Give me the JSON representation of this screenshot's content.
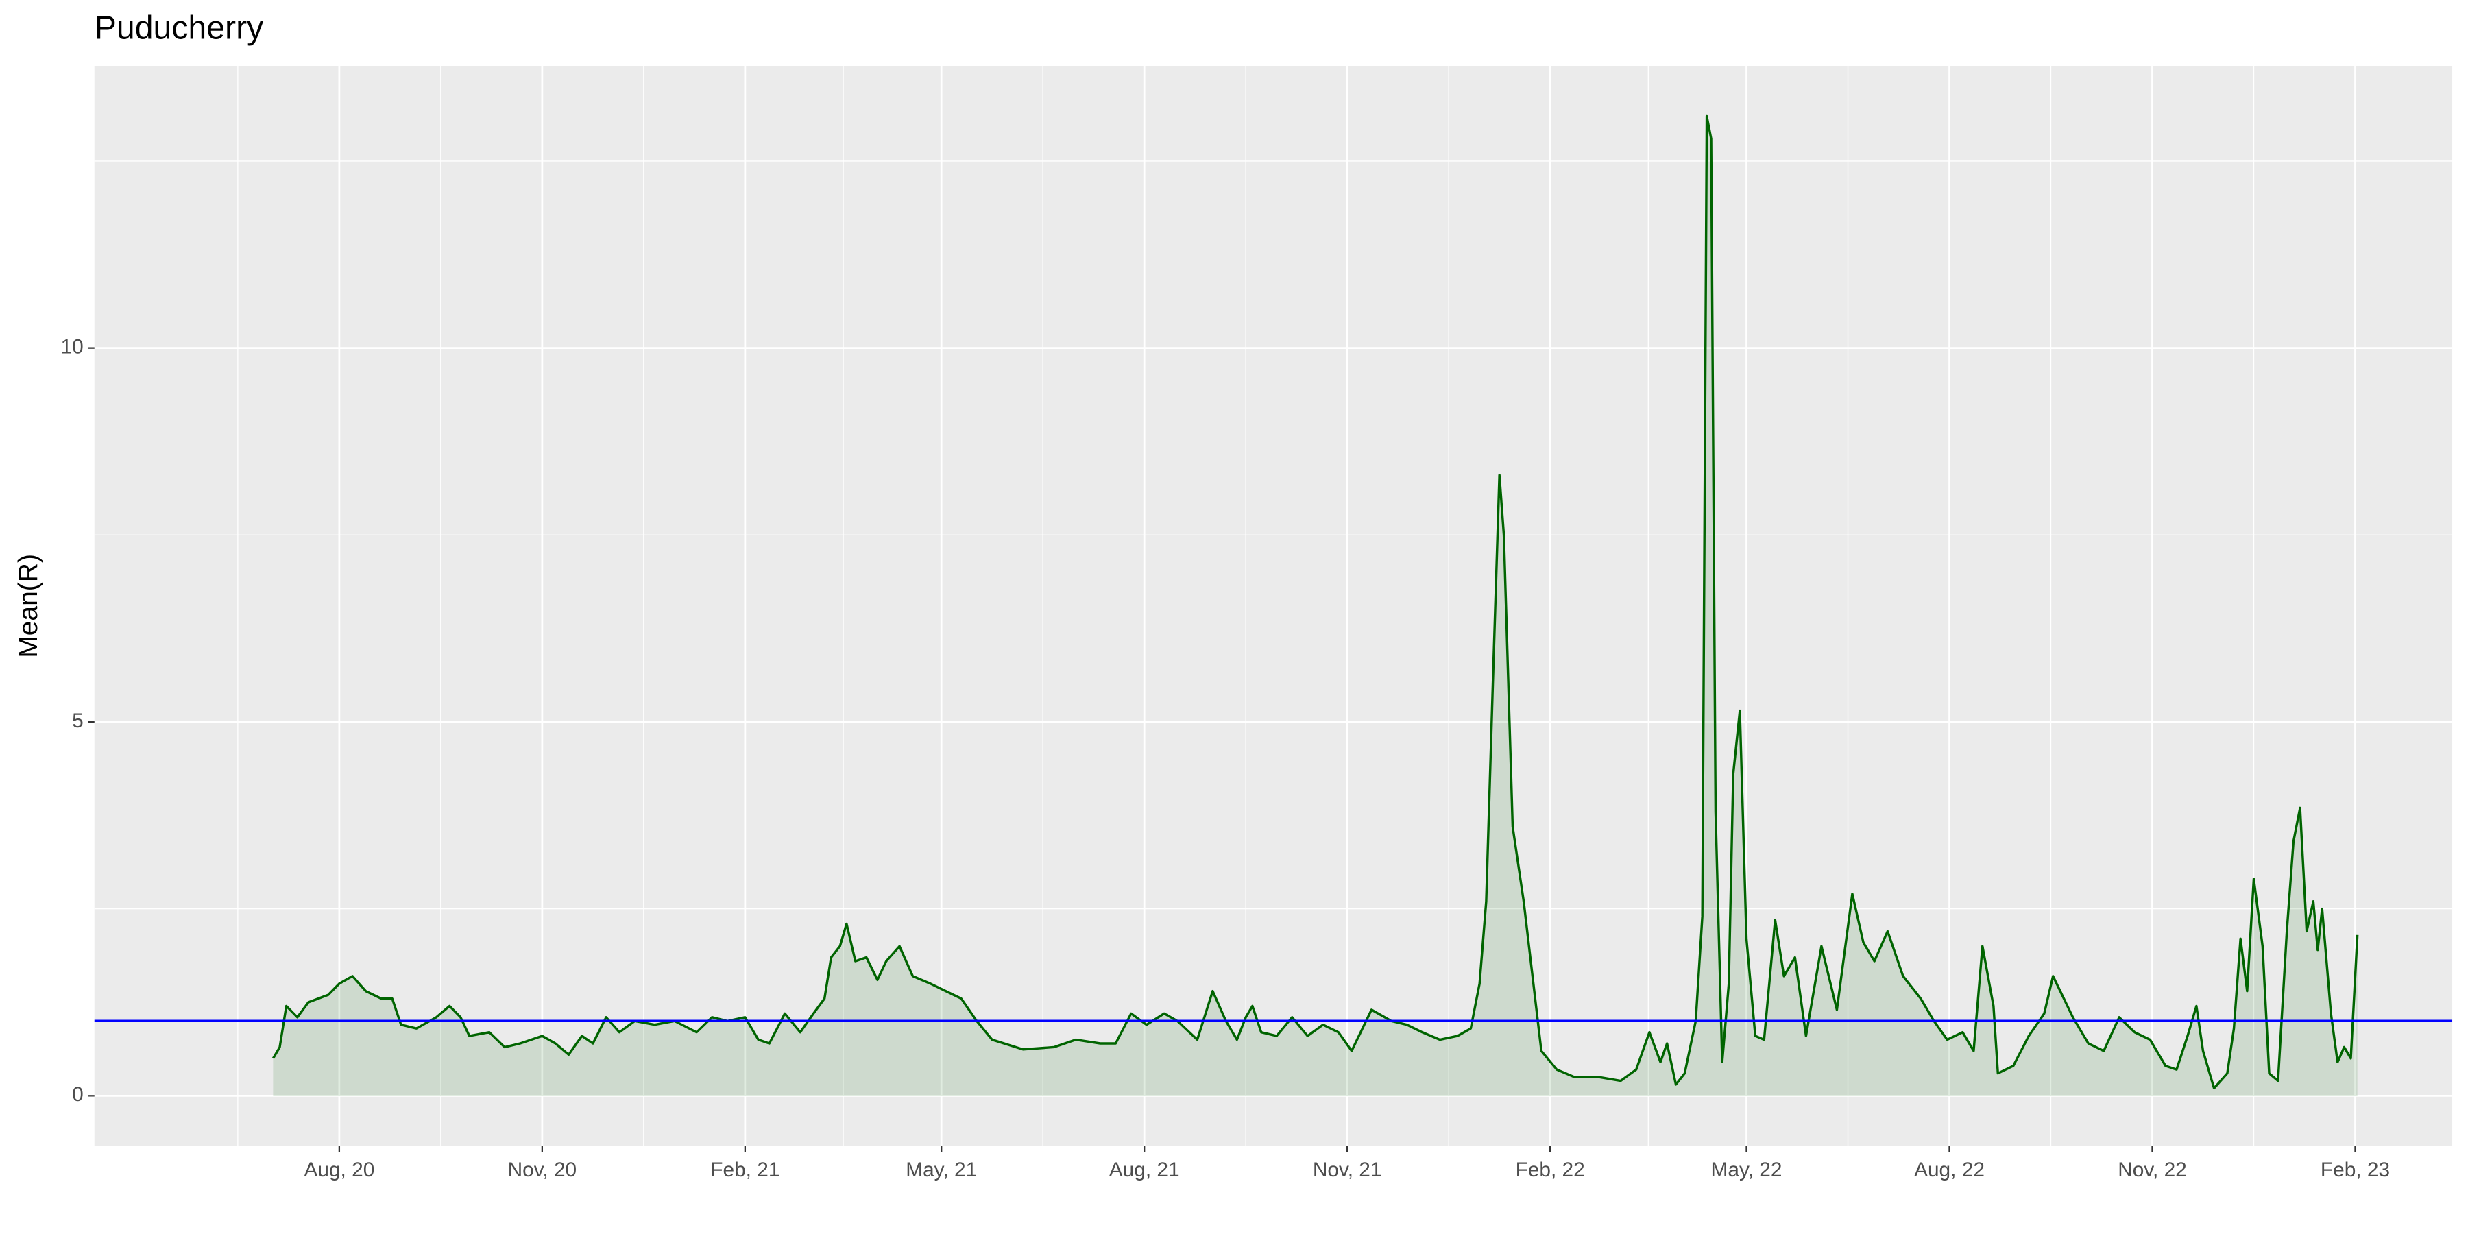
{
  "chart_data": {
    "type": "line",
    "title": "Puducherry",
    "y_label": "Mean(R)",
    "series": [
      {
        "name": "Mean(R)",
        "color": "#006400",
        "fill": "#006400",
        "x": [
          "2020-07-02",
          "2020-07-05",
          "2020-07-08",
          "2020-07-13",
          "2020-07-18",
          "2020-07-27",
          "2020-08-01",
          "2020-08-07",
          "2020-08-13",
          "2020-08-20",
          "2020-08-25",
          "2020-08-29",
          "2020-09-05",
          "2020-09-14",
          "2020-09-20",
          "2020-09-25",
          "2020-09-29",
          "2020-10-08",
          "2020-10-15",
          "2020-10-22",
          "2020-11-01",
          "2020-11-07",
          "2020-11-13",
          "2020-11-19",
          "2020-11-24",
          "2020-11-30",
          "2020-12-06",
          "2020-12-13",
          "2020-12-22",
          "2020-12-31",
          "2021-01-10",
          "2021-01-17",
          "2021-01-24",
          "2021-02-01",
          "2021-02-07",
          "2021-02-12",
          "2021-02-19",
          "2021-02-26",
          "2021-03-04",
          "2021-03-09",
          "2021-03-12",
          "2021-03-16",
          "2021-03-19",
          "2021-03-23",
          "2021-03-28",
          "2021-04-02",
          "2021-04-06",
          "2021-04-12",
          "2021-04-18",
          "2021-04-26",
          "2021-05-03",
          "2021-05-10",
          "2021-05-17",
          "2021-05-24",
          "2021-06-07",
          "2021-06-21",
          "2021-07-01",
          "2021-07-12",
          "2021-07-19",
          "2021-07-26",
          "2021-08-02",
          "2021-08-10",
          "2021-08-16",
          "2021-08-25",
          "2021-09-01",
          "2021-09-07",
          "2021-09-12",
          "2021-09-16",
          "2021-09-19",
          "2021-09-23",
          "2021-09-30",
          "2021-10-07",
          "2021-10-14",
          "2021-10-21",
          "2021-10-28",
          "2021-11-03",
          "2021-11-12",
          "2021-11-21",
          "2021-11-28",
          "2021-12-05",
          "2021-12-13",
          "2021-12-21",
          "2021-12-27",
          "2021-12-31",
          "2022-01-03",
          "2022-01-06",
          "2022-01-09",
          "2022-01-11",
          "2022-01-15",
          "2022-01-20",
          "2022-01-24",
          "2022-01-28",
          "2022-02-04",
          "2022-02-12",
          "2022-02-23",
          "2022-03-05",
          "2022-03-12",
          "2022-03-18",
          "2022-03-23",
          "2022-03-26",
          "2022-03-30",
          "2022-04-03",
          "2022-04-08",
          "2022-04-11",
          "2022-04-13",
          "2022-04-15",
          "2022-04-17",
          "2022-04-20",
          "2022-04-23",
          "2022-04-25",
          "2022-04-28",
          "2022-05-01",
          "2022-05-05",
          "2022-05-09",
          "2022-05-14",
          "2022-05-18",
          "2022-05-23",
          "2022-05-28",
          "2022-06-04",
          "2022-06-11",
          "2022-06-18",
          "2022-06-23",
          "2022-06-28",
          "2022-07-04",
          "2022-07-11",
          "2022-07-19",
          "2022-07-25",
          "2022-07-31",
          "2022-08-07",
          "2022-08-12",
          "2022-08-16",
          "2022-08-21",
          "2022-08-23",
          "2022-08-30",
          "2022-09-06",
          "2022-09-13",
          "2022-09-17",
          "2022-09-26",
          "2022-10-03",
          "2022-10-10",
          "2022-10-17",
          "2022-10-24",
          "2022-10-31",
          "2022-11-07",
          "2022-11-12",
          "2022-11-17",
          "2022-11-21",
          "2022-11-24",
          "2022-11-29",
          "2022-12-05",
          "2022-12-08",
          "2022-12-11",
          "2022-12-14",
          "2022-12-17",
          "2022-12-21",
          "2022-12-24",
          "2022-12-28",
          "2023-01-01",
          "2023-01-04",
          "2023-01-07",
          "2023-01-10",
          "2023-01-13",
          "2023-01-15",
          "2023-01-17",
          "2023-01-21",
          "2023-01-24",
          "2023-01-27",
          "2023-01-30",
          "2023-02-02"
        ],
        "values": [
          0.5,
          0.65,
          1.2,
          1.05,
          1.25,
          1.35,
          1.5,
          1.6,
          1.4,
          1.3,
          1.3,
          0.95,
          0.9,
          1.05,
          1.2,
          1.05,
          0.8,
          0.85,
          0.65,
          0.7,
          0.8,
          0.7,
          0.55,
          0.8,
          0.7,
          1.05,
          0.85,
          1.0,
          0.95,
          1.0,
          0.85,
          1.05,
          1.0,
          1.05,
          0.75,
          0.7,
          1.1,
          0.85,
          1.1,
          1.3,
          1.85,
          2.0,
          2.3,
          1.8,
          1.85,
          1.55,
          1.8,
          2.0,
          1.6,
          1.5,
          1.4,
          1.3,
          1.0,
          0.75,
          0.62,
          0.65,
          0.75,
          0.7,
          0.7,
          1.1,
          0.95,
          1.1,
          1.0,
          0.75,
          1.4,
          1.0,
          0.75,
          1.05,
          1.2,
          0.85,
          0.8,
          1.05,
          0.8,
          0.95,
          0.85,
          0.6,
          1.15,
          1.0,
          0.95,
          0.85,
          0.75,
          0.8,
          0.9,
          1.5,
          2.6,
          5.5,
          8.3,
          7.5,
          3.6,
          2.6,
          1.6,
          0.6,
          0.35,
          0.25,
          0.25,
          0.2,
          0.35,
          0.85,
          0.45,
          0.7,
          0.15,
          0.3,
          1.0,
          2.4,
          13.1,
          12.8,
          3.8,
          0.45,
          1.5,
          4.3,
          5.15,
          2.1,
          0.8,
          0.75,
          2.35,
          1.6,
          1.85,
          0.8,
          2.0,
          1.15,
          2.7,
          2.05,
          1.8,
          2.2,
          1.6,
          1.3,
          1.0,
          0.75,
          0.85,
          0.6,
          2.0,
          1.2,
          0.3,
          0.4,
          0.8,
          1.1,
          1.6,
          1.05,
          0.7,
          0.6,
          1.05,
          0.85,
          0.75,
          0.4,
          0.35,
          0.8,
          1.2,
          0.6,
          0.1,
          0.3,
          0.9,
          2.1,
          1.4,
          2.9,
          2.0,
          0.3,
          0.2,
          2.2,
          3.4,
          3.85,
          2.2,
          2.6,
          1.95,
          2.5,
          1.1,
          0.45,
          0.65,
          0.5,
          2.15
        ]
      }
    ],
    "hline": {
      "value": 1,
      "color": "#0000ff"
    },
    "xlim": [
      "2020-04-12",
      "2023-03-17"
    ],
    "xticks": [
      {
        "value": "2020-08-01",
        "label": "Aug, 20"
      },
      {
        "value": "2020-11-01",
        "label": "Nov, 20"
      },
      {
        "value": "2021-02-01",
        "label": "Feb, 21"
      },
      {
        "value": "2021-05-01",
        "label": "May, 21"
      },
      {
        "value": "2021-08-01",
        "label": "Aug, 21"
      },
      {
        "value": "2021-11-01",
        "label": "Nov, 21"
      },
      {
        "value": "2022-02-01",
        "label": "Feb, 22"
      },
      {
        "value": "2022-05-01",
        "label": "May, 22"
      },
      {
        "value": "2022-08-01",
        "label": "Aug, 22"
      },
      {
        "value": "2022-11-01",
        "label": "Nov, 22"
      },
      {
        "value": "2023-02-01",
        "label": "Feb, 23"
      }
    ],
    "ylim": [
      -0.67,
      13.77
    ],
    "yticks": [
      0,
      5,
      10
    ],
    "grid": true
  }
}
